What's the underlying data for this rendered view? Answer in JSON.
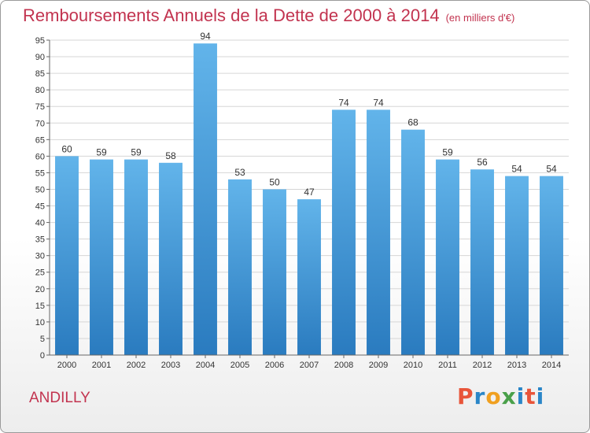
{
  "header": {
    "title": "Remboursements Annuels de la Dette de 2000 à 2014",
    "subtitle": "(en milliers d'€)"
  },
  "footer": {
    "commune": "ANDILLY",
    "logo": "Proxiti"
  },
  "colors": {
    "title": "#c2334f",
    "bar_top": "#62b4ea",
    "bar_bottom": "#2a7bbf",
    "logo": [
      "#e8553a",
      "#2a86c8",
      "#f0a020",
      "#4aa04a",
      "#2a86c8",
      "#e8553a",
      "#2a86c8"
    ]
  },
  "chart_data": {
    "type": "bar",
    "title": "Remboursements Annuels de la Dette de 2000 à 2014",
    "subtitle": "(en milliers d'€)",
    "categories": [
      "2000",
      "2001",
      "2002",
      "2003",
      "2004",
      "2005",
      "2006",
      "2007",
      "2008",
      "2009",
      "2010",
      "2011",
      "2012",
      "2013",
      "2014"
    ],
    "values": [
      60,
      59,
      59,
      58,
      94,
      53,
      50,
      47,
      74,
      74,
      68,
      59,
      56,
      54,
      54
    ],
    "ylim": [
      0,
      95
    ],
    "yticks": [
      0,
      5,
      10,
      15,
      20,
      25,
      30,
      35,
      40,
      45,
      50,
      55,
      60,
      65,
      70,
      75,
      80,
      85,
      90,
      95
    ],
    "grid": true,
    "legend": "none"
  }
}
